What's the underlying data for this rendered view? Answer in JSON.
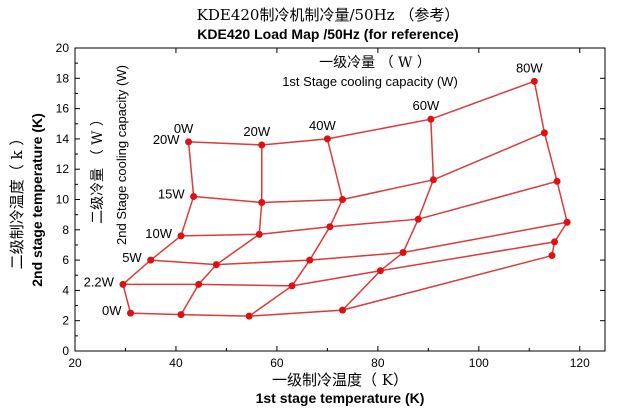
{
  "chart_data": {
    "type": "line",
    "title": "KDE420制冷机制冷量/50Hz （参考）",
    "subtitle": "KDE420 Load Map /50Hz (for reference)",
    "xlabel_cn": "一级制冷温度（ K）",
    "xlabel": "1st stage temperature (K)",
    "ylabel_cn": "二级制冷温度（ k ）",
    "ylabel": "2nd stage temperature (K)",
    "x_capacity_label_cn": "一级冷量 （ W ）",
    "x_capacity_label": "1st Stage cooling capacity (W)",
    "y_capacity_label_cn": "二级冷量 （ W ）",
    "y_capacity_label": "2nd Stage cooling capacity (W)",
    "xlim": [
      20,
      125
    ],
    "ylim": [
      0,
      20
    ],
    "xticks": [
      20,
      40,
      60,
      80,
      100,
      120
    ],
    "yticks": [
      0,
      2,
      4,
      6,
      8,
      10,
      12,
      14,
      16,
      18,
      20
    ],
    "grid": false,
    "line_color": "#dd3a3a",
    "marker_color": "#dd1111",
    "first_stage_loads": [
      "0W",
      "20W",
      "40W",
      "60W",
      "80W"
    ],
    "second_stage_loads": [
      "0W",
      "2.2W",
      "5W",
      "10W",
      "15W",
      "20W"
    ],
    "points": [
      [
        [
          31.0,
          2.5
        ],
        [
          29.5,
          4.4
        ],
        [
          35.0,
          6.0
        ],
        [
          41.0,
          7.6
        ],
        [
          43.5,
          10.2
        ],
        [
          42.5,
          13.8
        ]
      ],
      [
        [
          41.0,
          2.4
        ],
        [
          44.5,
          4.4
        ],
        [
          48.0,
          5.7
        ],
        [
          56.5,
          7.7
        ],
        [
          57.0,
          9.8
        ],
        [
          57.0,
          13.6
        ]
      ],
      [
        [
          54.5,
          2.3
        ],
        [
          63.0,
          4.3
        ],
        [
          66.5,
          6.0
        ],
        [
          70.5,
          8.2
        ],
        [
          73.0,
          10.0
        ],
        [
          70.0,
          14.0
        ]
      ],
      [
        [
          73.0,
          2.7
        ],
        [
          80.5,
          5.3
        ],
        [
          85.0,
          6.5
        ],
        [
          88.0,
          8.7
        ],
        [
          91.0,
          11.3
        ],
        [
          90.5,
          15.3
        ]
      ],
      [
        [
          114.5,
          6.3
        ],
        [
          115.0,
          7.2
        ],
        [
          117.5,
          8.5
        ],
        [
          115.5,
          11.2
        ],
        [
          113.0,
          14.4
        ],
        [
          111.0,
          17.8
        ]
      ]
    ]
  }
}
